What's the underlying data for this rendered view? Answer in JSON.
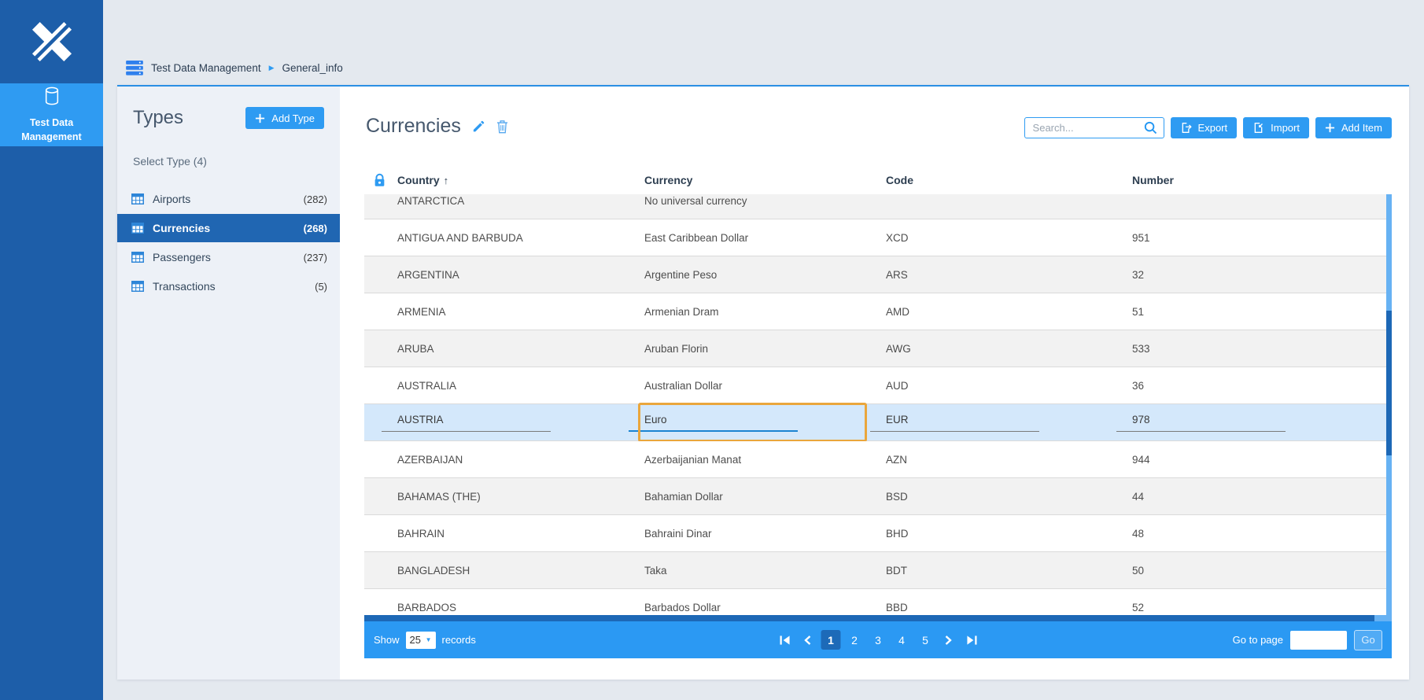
{
  "colors": {
    "accent": "#2e9bf2",
    "sidebar_bg": "#1d5ea9",
    "sidebar_selected": "#2f9bf2",
    "panel_bg": "#edf1f7",
    "type_selected_bg": "#2066b2",
    "footer_bg": "#2b99f3",
    "current_page_bg": "#1d6ab8",
    "row_alt": "#f2f2f2",
    "edit_row_bg": "#d4e8fb",
    "focus_ring": "#eaa63c",
    "scroll_track": "#67b2f3",
    "scroll_thumb": "#1d68b6",
    "card_top_border": "#2a8fe4"
  },
  "sidebar": {
    "app_label": "Test Data Management"
  },
  "breadcrumb": {
    "root": "Test Data Management",
    "current": "General_info"
  },
  "types_panel": {
    "title": "Types",
    "add_type_label": "Add Type",
    "select_type_label": "Select Type (4)",
    "items": [
      {
        "label": "Airports",
        "count": "(282)",
        "selected": false
      },
      {
        "label": "Currencies",
        "count": "(268)",
        "selected": true
      },
      {
        "label": "Passengers",
        "count": "(237)",
        "selected": false
      },
      {
        "label": "Transactions",
        "count": "(5)",
        "selected": false
      }
    ]
  },
  "main": {
    "title": "Currencies",
    "search": {
      "placeholder": "Search..."
    },
    "toolbar": {
      "export_label": "Export",
      "import_label": "Import",
      "add_item_label": "Add Item"
    },
    "table": {
      "columns": {
        "country": "Country",
        "currency": "Currency",
        "code": "Code",
        "number": "Number"
      },
      "sort": {
        "column": "Country",
        "direction": "asc",
        "indicator": "↑"
      },
      "rows": [
        {
          "country": "ANTARCTICA",
          "currency": "No universal currency",
          "code": "",
          "number": ""
        },
        {
          "country": "ANTIGUA AND BARBUDA",
          "currency": "East Caribbean Dollar",
          "code": "XCD",
          "number": "951"
        },
        {
          "country": "ARGENTINA",
          "currency": "Argentine Peso",
          "code": "ARS",
          "number": "32"
        },
        {
          "country": "ARMENIA",
          "currency": "Armenian Dram",
          "code": "AMD",
          "number": "51"
        },
        {
          "country": "ARUBA",
          "currency": "Aruban Florin",
          "code": "AWG",
          "number": "533"
        },
        {
          "country": "AUSTRALIA",
          "currency": "Australian Dollar",
          "code": "AUD",
          "number": "36"
        },
        {
          "country": "AUSTRIA",
          "currency": "Euro",
          "code": "EUR",
          "number": "978",
          "editing": true,
          "focused_field": "currency"
        },
        {
          "country": "AZERBAIJAN",
          "currency": "Azerbaijanian Manat",
          "code": "AZN",
          "number": "944"
        },
        {
          "country": "BAHAMAS (THE)",
          "currency": "Bahamian Dollar",
          "code": "BSD",
          "number": "44"
        },
        {
          "country": "BAHRAIN",
          "currency": "Bahraini Dinar",
          "code": "BHD",
          "number": "48"
        },
        {
          "country": "BANGLADESH",
          "currency": "Taka",
          "code": "BDT",
          "number": "50"
        },
        {
          "country": "BARBADOS",
          "currency": "Barbados Dollar",
          "code": "BBD",
          "number": "52"
        }
      ]
    },
    "footer": {
      "show_label": "Show",
      "page_size": "25",
      "records_label": "records",
      "pages": [
        "1",
        "2",
        "3",
        "4",
        "5"
      ],
      "current_page": "1",
      "goto_label": "Go to page",
      "goto_value": "",
      "go_label": "Go"
    }
  }
}
